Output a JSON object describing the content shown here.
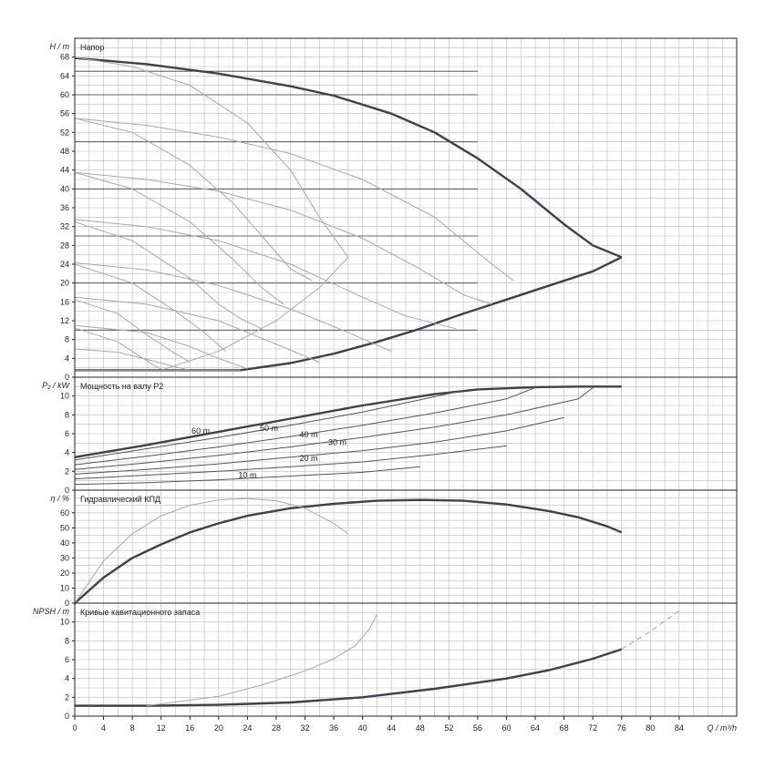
{
  "chart_data": [
    {
      "panel": "head",
      "type": "line",
      "title": "Напор",
      "ylabel": "H / m",
      "ylim": [
        0,
        72
      ],
      "yticks": [
        0,
        4,
        8,
        12,
        16,
        20,
        24,
        28,
        32,
        36,
        40,
        44,
        48,
        52,
        56,
        60,
        64,
        68
      ],
      "xlim": [
        0,
        92
      ],
      "series": [
        {
          "style": "bold",
          "x": [
            0,
            10,
            20,
            30,
            36,
            44,
            50,
            56,
            62,
            68,
            72,
            76
          ],
          "y": [
            67.8,
            66.5,
            64.5,
            61.8,
            59.8,
            56,
            52,
            46.5,
            40,
            32.5,
            28,
            25.5
          ]
        },
        {
          "style": "bold",
          "x": [
            0,
            10,
            20,
            23,
            30,
            36,
            42,
            48,
            54,
            60,
            66,
            72,
            76
          ],
          "y": [
            1.5,
            1.5,
            1.5,
            1.5,
            3,
            5,
            7.5,
            10.3,
            13.5,
            16.5,
            19.5,
            22.5,
            25.5
          ]
        },
        {
          "style": "thin",
          "x": [
            0,
            8,
            16,
            24,
            30,
            34,
            38
          ],
          "y": [
            68,
            66,
            62,
            54,
            44,
            34,
            25.5
          ]
        },
        {
          "style": "thin",
          "x": [
            0,
            10,
            20,
            30,
            40,
            50,
            58,
            61
          ],
          "y": [
            55,
            53.5,
            51,
            47.5,
            42,
            34,
            24,
            20.5
          ]
        },
        {
          "style": "thin",
          "x": [
            0,
            8,
            16,
            22,
            26,
            30,
            33
          ],
          "y": [
            55,
            52,
            45,
            37,
            30,
            23,
            20.5
          ]
        },
        {
          "style": "thin",
          "x": [
            0,
            10,
            20,
            30,
            40,
            48,
            54,
            58
          ],
          "y": [
            43.5,
            42,
            39.5,
            35.5,
            29.5,
            23,
            17.5,
            15.5
          ]
        },
        {
          "style": "thin",
          "x": [
            0,
            8,
            16,
            22,
            26,
            29
          ],
          "y": [
            43.5,
            40,
            33,
            25,
            19,
            15.5
          ]
        },
        {
          "style": "thin",
          "x": [
            0,
            10,
            20,
            30,
            40,
            46,
            53
          ],
          "y": [
            33.5,
            32,
            29,
            24,
            17,
            13,
            10.3
          ]
        },
        {
          "style": "thin",
          "x": [
            0,
            8,
            16,
            20,
            23,
            26
          ],
          "y": [
            33,
            29,
            21,
            15.5,
            12.5,
            10.3
          ]
        },
        {
          "style": "thin",
          "x": [
            0,
            10,
            20,
            30,
            38,
            44
          ],
          "y": [
            24.3,
            22.8,
            19.5,
            14.5,
            9.5,
            5.5
          ]
        },
        {
          "style": "thin",
          "x": [
            0,
            8,
            14,
            18,
            21
          ],
          "y": [
            24,
            20,
            14,
            9.5,
            5.5
          ]
        },
        {
          "style": "thin",
          "x": [
            0,
            10,
            20,
            28,
            34
          ],
          "y": [
            17,
            15.5,
            12,
            7,
            3.2
          ]
        },
        {
          "style": "thin",
          "x": [
            0,
            6,
            10,
            14,
            16
          ],
          "y": [
            16.5,
            13.5,
            9,
            5,
            3.2
          ]
        },
        {
          "style": "thin",
          "x": [
            0,
            10,
            16,
            20,
            24
          ],
          "y": [
            11,
            9.5,
            6.5,
            4,
            1.8
          ]
        },
        {
          "style": "thin",
          "x": [
            0,
            6,
            9,
            11,
            12
          ],
          "y": [
            10.5,
            7.5,
            4.5,
            2.5,
            1.8
          ]
        },
        {
          "style": "thin",
          "x": [
            0,
            6,
            10,
            13,
            16
          ],
          "y": [
            6,
            5.3,
            3.8,
            2.6,
            1.5
          ]
        },
        {
          "style": "thin",
          "x": [
            0,
            10,
            20,
            23
          ],
          "y": [
            1.5,
            1.5,
            1.5,
            1.5
          ]
        },
        {
          "style": "thin",
          "x": [
            12,
            20,
            28,
            34,
            38
          ],
          "y": [
            1.5,
            5.5,
            12,
            19,
            25.5
          ]
        }
      ]
    },
    {
      "panel": "power",
      "type": "line",
      "title": "Мощность на валу P2",
      "ylabel": "P₂ / kW",
      "ylim": [
        0,
        12
      ],
      "yticks": [
        0,
        2,
        4,
        6,
        8,
        10
      ],
      "curve_labels": [
        {
          "text": "60 m",
          "x": 17.5,
          "y": 6.0
        },
        {
          "text": "50 m",
          "x": 27,
          "y": 6.3
        },
        {
          "text": "40 m",
          "x": 32.5,
          "y": 5.6
        },
        {
          "text": "30 m",
          "x": 36.5,
          "y": 4.8
        },
        {
          "text": "20 m",
          "x": 32.5,
          "y": 3.1
        },
        {
          "text": "10 m",
          "x": 24,
          "y": 1.3
        }
      ],
      "series": [
        {
          "style": "bold",
          "x": [
            0,
            10,
            20,
            30,
            40,
            50,
            56,
            64,
            70,
            76
          ],
          "y": [
            3.5,
            4.8,
            6.2,
            7.6,
            9.0,
            10.2,
            10.7,
            10.95,
            11.0,
            11.0
          ]
        },
        {
          "style": "thin",
          "x": [
            0,
            10,
            20,
            30,
            40,
            48,
            54
          ],
          "y": [
            3.2,
            4.4,
            5.6,
            6.9,
            8.3,
            9.6,
            10.6
          ]
        },
        {
          "style": "thin",
          "x": [
            0,
            10,
            20,
            30,
            40,
            50,
            60,
            64
          ],
          "y": [
            2.7,
            3.6,
            4.6,
            5.7,
            6.9,
            8.2,
            9.7,
            10.9
          ]
        },
        {
          "style": "thin",
          "x": [
            0,
            10,
            20,
            30,
            40,
            50,
            60,
            70,
            72
          ],
          "y": [
            2.2,
            2.9,
            3.7,
            4.6,
            5.6,
            6.7,
            8.0,
            9.7,
            10.9
          ]
        },
        {
          "style": "thin",
          "x": [
            0,
            10,
            20,
            30,
            40,
            50,
            60,
            68
          ],
          "y": [
            1.7,
            2.2,
            2.8,
            3.5,
            4.2,
            5.1,
            6.3,
            7.7
          ]
        },
        {
          "style": "thin",
          "x": [
            0,
            10,
            20,
            30,
            40,
            50,
            60
          ],
          "y": [
            1.2,
            1.6,
            2.0,
            2.5,
            3.0,
            3.8,
            4.7
          ]
        },
        {
          "style": "thin",
          "x": [
            0,
            10,
            20,
            30,
            40,
            48
          ],
          "y": [
            0.6,
            0.8,
            1.1,
            1.5,
            1.9,
            2.5
          ]
        }
      ]
    },
    {
      "panel": "efficiency",
      "type": "line",
      "title": "Гидравлический КПД",
      "ylabel": "η / %",
      "ylim": [
        0,
        75
      ],
      "yticks": [
        0,
        10,
        20,
        30,
        40,
        50,
        60
      ],
      "series": [
        {
          "style": "bold",
          "x": [
            0,
            4,
            8,
            12,
            16,
            20,
            24,
            30,
            36,
            42,
            48,
            54,
            60,
            66,
            70,
            74,
            76
          ],
          "y": [
            0,
            17,
            30,
            39,
            47,
            53,
            58,
            63,
            66,
            68,
            68.5,
            68,
            65.5,
            61,
            57,
            51,
            47
          ]
        },
        {
          "style": "thin",
          "x": [
            0,
            4,
            8,
            12,
            16,
            20,
            24,
            28,
            32,
            36,
            38
          ],
          "y": [
            0,
            28,
            46,
            58,
            65,
            68.5,
            69.5,
            68,
            63,
            53,
            46
          ]
        }
      ]
    },
    {
      "panel": "npsh",
      "type": "line",
      "title": "Кривые кавитационного запаса",
      "ylabel": "NPSH / m",
      "ylim": [
        0,
        12
      ],
      "yticks": [
        0,
        2,
        4,
        6,
        8,
        10
      ],
      "series": [
        {
          "style": "bold",
          "x": [
            0,
            10
          ],
          "y": [
            1.1,
            1.1
          ]
        },
        {
          "style": "bold",
          "x": [
            10,
            20,
            30,
            40,
            50,
            60,
            66,
            72,
            76
          ],
          "y": [
            1.1,
            1.2,
            1.45,
            2.0,
            2.9,
            4.0,
            4.9,
            6.1,
            7.1
          ]
        },
        {
          "style": "thin",
          "x": [
            10,
            20,
            26,
            32,
            36,
            39,
            41,
            42
          ],
          "y": [
            1.1,
            2.1,
            3.3,
            4.8,
            6.1,
            7.5,
            9.3,
            10.8
          ]
        },
        {
          "style": "dashed",
          "x": [
            76,
            80,
            84
          ],
          "y": [
            7.1,
            9.0,
            11.2
          ]
        }
      ]
    }
  ],
  "x_axis": {
    "label": "Q / m³/h",
    "ticks": [
      "0",
      "4",
      "8",
      "12",
      "16",
      "20",
      "24",
      "28",
      "32",
      "36",
      "40",
      "44",
      "48",
      "52",
      "56",
      "60",
      "64",
      "68",
      "72",
      "76",
      "80",
      "84"
    ]
  }
}
